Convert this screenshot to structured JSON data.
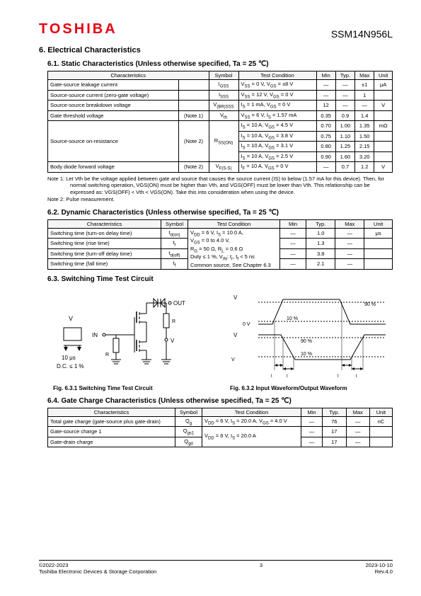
{
  "header": {
    "logo": "TOSHIBA",
    "part_number": "SSM14N956L"
  },
  "section6": {
    "title": "6.  Electrical Characteristics"
  },
  "s61": {
    "title": "6.1.  Static Characteristics (Unless otherwise specified, Ta = 25 ℃)",
    "cols": [
      "Characteristics",
      "Symbol",
      "Test Condition",
      "Min",
      "Typ.",
      "Max",
      "Unit"
    ],
    "rows": [
      {
        "ch": "Gate-source leakage current",
        "note": "",
        "sym": "I<sub>GSS</sub>",
        "cond": "V<sub>SS</sub> = 0 V, V<sub>GS</sub> = ±8 V",
        "min": "—",
        "typ": "—",
        "max": "±1",
        "unit": "μA"
      },
      {
        "ch": "Source-source current (zero-gate voltage)",
        "note": "",
        "sym": "I<sub>SSS</sub>",
        "cond": "V<sub>SS</sub> = 12 V, V<sub>GS</sub> = 0 V",
        "min": "—",
        "typ": "—",
        "max": "1",
        "unit": ""
      },
      {
        "ch": "Source-source breakdown voltage",
        "note": "",
        "sym": "V<sub>(BR)SSS</sub>",
        "cond": "I<sub>S</sub> = 1 mA, V<sub>GS</sub> = 0 V",
        "min": "12",
        "typ": "—",
        "max": "—",
        "unit": "V"
      },
      {
        "ch": "Gate threshold voltage",
        "note": "(Note 1)",
        "sym": "V<sub>th</sub>",
        "cond": "V<sub>SS</sub> = 6 V, I<sub>S</sub> = 1.57 mA",
        "min": "0.35",
        "typ": "0.9",
        "max": "1.4",
        "unit": ""
      },
      {
        "ch": "Source-source on-resistance",
        "note": "(Note 2)",
        "sym": "R<sub>SS(ON)</sub>",
        "cond": "I<sub>S</sub> = 10 A, V<sub>GS</sub> = 4.5 V",
        "min": "0.70",
        "typ": "1.00",
        "max": "1.35",
        "unit": "mΩ"
      },
      {
        "ch": "",
        "note": "",
        "sym": "",
        "cond": "I<sub>S</sub> = 10 A, V<sub>GS</sub> = 3.8 V",
        "min": "0.75",
        "typ": "1.10",
        "max": "1.50",
        "unit": ""
      },
      {
        "ch": "",
        "note": "",
        "sym": "",
        "cond": "I<sub>S</sub> = 10 A, V<sub>GS</sub> = 3.1 V",
        "min": "0.80",
        "typ": "1.25",
        "max": "2.15",
        "unit": ""
      },
      {
        "ch": "",
        "note": "",
        "sym": "",
        "cond": "I<sub>S</sub> = 10 A, V<sub>GS</sub> = 2.5 V",
        "min": "0.90",
        "typ": "1.60",
        "max": "3.20",
        "unit": ""
      },
      {
        "ch": "Body diode forward voltage",
        "note": "(Note 2)",
        "sym": "V<sub>F(S-S)</sub>",
        "cond": "I<sub>F</sub> = 10 A, V<sub>GS</sub> = 0 V",
        "min": "—",
        "typ": "0.7",
        "max": "1.2",
        "unit": "V"
      }
    ]
  },
  "notes61": [
    "Note 1: Let Vth be the voltage applied between gate and source that causes the source current (IS) to below (1.57 mA for this device). Then, for normal switching operation, VGS(ON) must be higher than Vth, and VGS(OFF) must be lower than Vth. This relationship can be expressed as: VGS(OFF) < Vth < VGS(ON). Take this into consideration when using the device.",
    "Note 2: Pulse measurement."
  ],
  "s62": {
    "title": "6.2.  Dynamic Characteristics (Unless otherwise specified, Ta = 25 ℃)",
    "cols": [
      "Characteristics",
      "Symbol",
      "Test Condition",
      "Min",
      "Typ.",
      "Max",
      "Unit"
    ],
    "rows": [
      {
        "ch": "Switching time (turn-on delay time)",
        "sym": "t<sub>d(on)</sub>",
        "min": "—",
        "typ": "1.0",
        "max": "—",
        "unit": "μs"
      },
      {
        "ch": "Switching time (rise time)",
        "sym": "t<sub>r</sub>",
        "min": "—",
        "typ": "1.3",
        "max": "—",
        "unit": ""
      },
      {
        "ch": "Switching time (turn-off delay time)",
        "sym": "t<sub>d(off)</sub>",
        "min": "—",
        "typ": "3.8",
        "max": "—",
        "unit": ""
      },
      {
        "ch": "Switching time (fall time)",
        "sym": "t<sub>f</sub>",
        "min": "—",
        "typ": "2.1",
        "max": "—",
        "unit": ""
      }
    ],
    "cond_text": "V<sub>DD</sub> = 6 V, I<sub>S</sub> = 10.0 A,<br>V<sub>GS</sub> = 0 to 4.0 V,<br>R<sub>G</sub> = 50 Ω, R<sub>L</sub> = 0.6 Ω<br>Duty ≤ 1 %, V<sub>IN</sub>: t<sub>r</sub>, t<sub>f</sub> < 5 ns<br>Common source, See Chapter 6.3"
  },
  "s63": {
    "title": "6.3.  Switching Time Test Circuit",
    "fig1": "Fig. 6.3.1   Switching Time Test Circuit",
    "fig2": "Fig. 6.3.2   Input Waveform/Output Waveform"
  },
  "circuit": {
    "vgs": "V<sub>GS</sub>",
    "in": "IN",
    "out": "OUT",
    "rg": "R<sub>G</sub>",
    "rl": "R<sub>L</sub>",
    "vdd": "V<sub>DD</sub>",
    "pulse_w": "10 μs",
    "dc": "D.C. ≤ 1 %"
  },
  "wave": {
    "vgs": "V<sub>GS</sub>",
    "vss": "V<sub>SS</sub>",
    "vsson": "V<sub>SS (ON)</sub>",
    "zero": "0 V",
    "p10": "10 %",
    "p90": "90 %",
    "tdon": "t<sub>d(on)</sub>",
    "tr": "t<sub>r</sub>",
    "tdoff": "t<sub>d(off)</sub>",
    "tf": "t<sub>f</sub>"
  },
  "s64": {
    "title": "6.4.  Gate Charge Characteristics (Unless otherwise specified, Ta = 25 ℃)",
    "cols": [
      "Characteristics",
      "Symbol",
      "Test Condition",
      "Min",
      "Typ.",
      "Max",
      "Unit"
    ],
    "rows": [
      {
        "ch": "Total gate charge (gate-source plus gate-drain)",
        "sym": "Q<sub>g</sub>",
        "cond": "V<sub>DD</sub> = 6 V, I<sub>S</sub> = 20.0 A, V<sub>GS</sub> = 4.0 V",
        "min": "—",
        "typ": "76",
        "max": "—",
        "unit": "nC"
      },
      {
        "ch": "Gate-source charge 1",
        "sym": "Q<sub>gs1</sub>",
        "cond": "V<sub>DD</sub> = 6 V, I<sub>S</sub> = 20.0 A",
        "min": "—",
        "typ": "17",
        "max": "—",
        "unit": ""
      },
      {
        "ch": "Gate-drain charge",
        "sym": "Q<sub>gd</sub>",
        "cond": "",
        "min": "—",
        "typ": "17",
        "max": "—",
        "unit": ""
      }
    ]
  },
  "footer": {
    "copyright": "©2022-2023",
    "company": "Toshiba Electronic Devices & Storage Corporation",
    "page": "3",
    "date": "2023-10-10",
    "rev": "Rev.4.0"
  }
}
